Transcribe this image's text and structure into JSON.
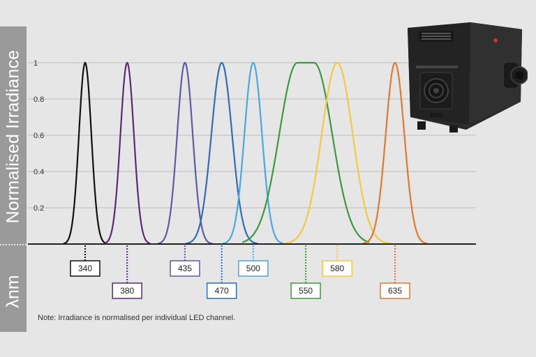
{
  "chart_data": {
    "type": "line",
    "title": "",
    "ylabel": "Normalised Irradiance",
    "xlabel": "λnm",
    "ylim": [
      0,
      1
    ],
    "yticks": [
      "0.2",
      "0.4",
      "0.6",
      "0.8",
      "1"
    ],
    "grid": true,
    "note": "Note: Irradiance is normalised per individual LED channel.",
    "series": [
      {
        "label": "340",
        "center_nm": 340,
        "peak": 1,
        "color": "#111111"
      },
      {
        "label": "380",
        "center_nm": 380,
        "peak": 1,
        "color": "#5b2a73"
      },
      {
        "label": "435",
        "center_nm": 435,
        "peak": 1,
        "color": "#5d5aa6"
      },
      {
        "label": "470",
        "center_nm": 470,
        "peak": 1,
        "color": "#2f6db4"
      },
      {
        "label": "500",
        "center_nm": 500,
        "peak": 1,
        "color": "#4aa8e0"
      },
      {
        "label": "550",
        "center_nm": 550,
        "peak": 1,
        "color": "#3a9a3e"
      },
      {
        "label": "580",
        "center_nm": 580,
        "peak": 1,
        "color": "#f5c842"
      },
      {
        "label": "635",
        "center_nm": 635,
        "peak": 1,
        "color": "#e07a30"
      }
    ]
  }
}
